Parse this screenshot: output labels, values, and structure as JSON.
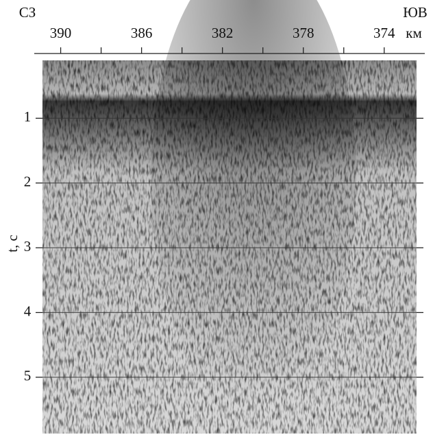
{
  "chart_data": {
    "type": "seismic",
    "corner_left": "СЗ",
    "corner_right": "ЮВ",
    "x_unit": "км",
    "ylabel": "t, с",
    "xlim": [
      390.9,
      372.4
    ],
    "xticks": [
      390,
      386,
      382,
      378,
      374
    ],
    "xminorticks": [
      388,
      384,
      380,
      376
    ],
    "ylim": [
      0,
      5.87
    ],
    "yticks": [
      1,
      2,
      3,
      4,
      5
    ],
    "grid": true
  }
}
